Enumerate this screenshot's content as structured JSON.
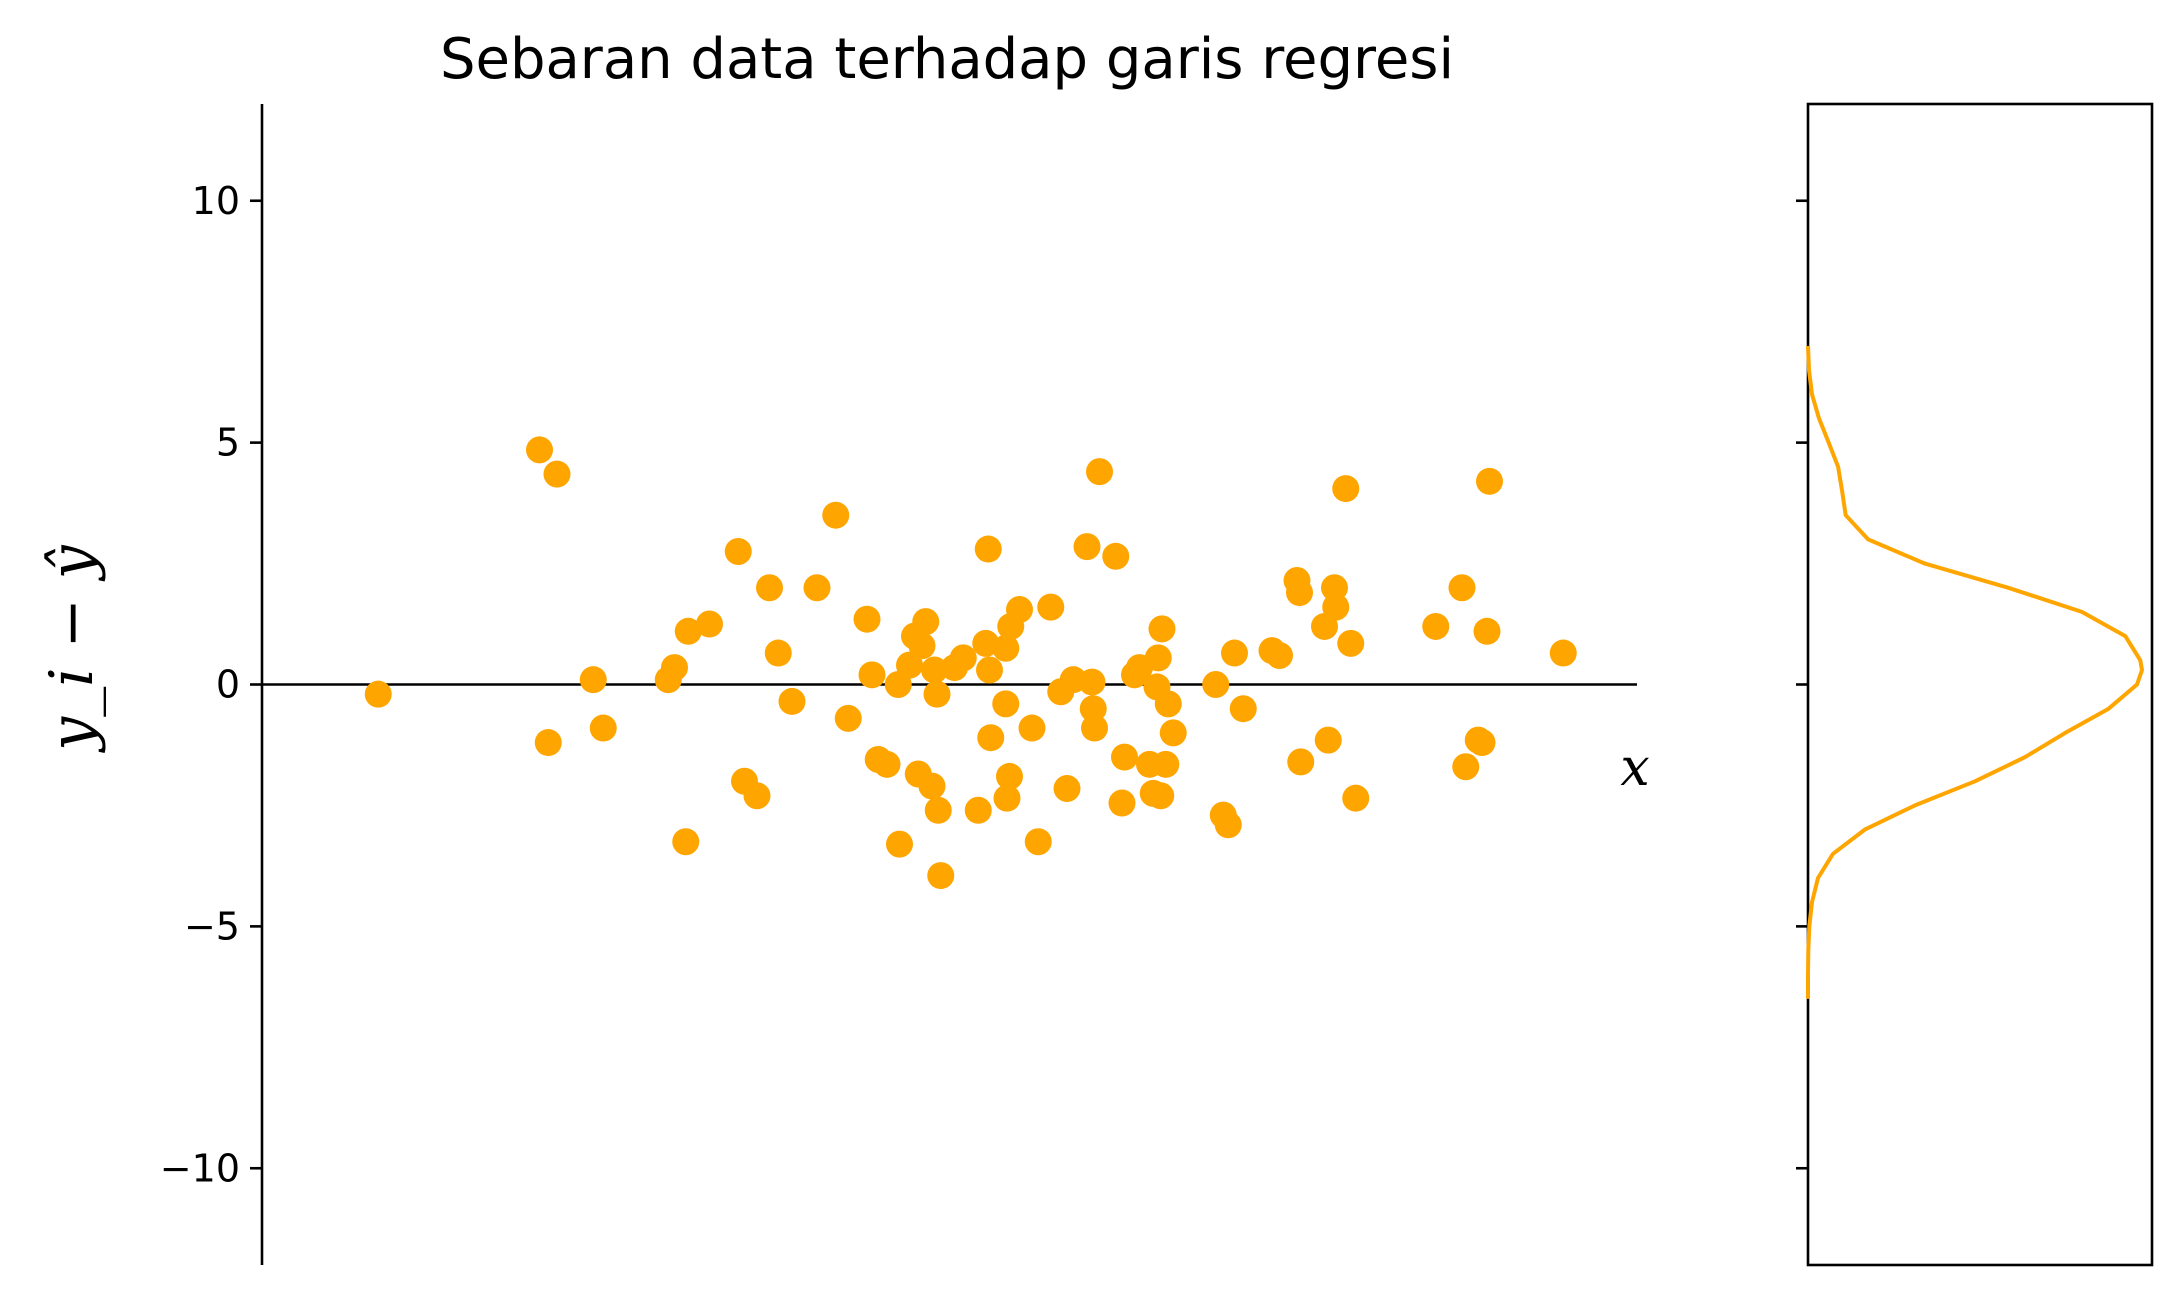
{
  "chart_data": [
    {
      "type": "scatter",
      "title": "Sebaran data terhadap garis regresi",
      "ylabel": "y_i − ŷ",
      "xlabel": "x",
      "ylim": [
        -12,
        12
      ],
      "xlim": [
        0,
        100
      ],
      "yticks": [
        10,
        5,
        0,
        -5,
        -10
      ],
      "ytick_labels": [
        "10",
        "5",
        "0",
        "−5",
        "−10"
      ],
      "grid": false,
      "legend": "none",
      "point_color": "#FFA500",
      "reference_line": {
        "y": 0,
        "x_from": 0,
        "x_to": 100,
        "color": "#000000"
      },
      "series": [
        {
          "values": [
            [
              4.5,
              -0.2
            ],
            [
              17.4,
              4.85
            ],
            [
              18.1,
              -1.2
            ],
            [
              18.8,
              4.35
            ],
            [
              21.7,
              0.1
            ],
            [
              22.5,
              -0.9
            ],
            [
              27.7,
              0.1
            ],
            [
              28.2,
              0.35
            ],
            [
              29.1,
              -3.25
            ],
            [
              29.3,
              1.1
            ],
            [
              31.0,
              1.25
            ],
            [
              33.3,
              2.75
            ],
            [
              33.8,
              -2.0
            ],
            [
              34.8,
              -2.3
            ],
            [
              35.8,
              2.0
            ],
            [
              36.5,
              0.65
            ],
            [
              37.6,
              -0.35
            ],
            [
              39.6,
              2.0
            ],
            [
              41.1,
              3.5
            ],
            [
              42.1,
              -0.7
            ],
            [
              43.6,
              1.35
            ],
            [
              44.0,
              0.2
            ],
            [
              44.5,
              -1.55
            ],
            [
              45.2,
              -1.65
            ],
            [
              46.1,
              0.0
            ],
            [
              46.2,
              -3.3
            ],
            [
              47.0,
              0.4
            ],
            [
              47.4,
              1.0
            ],
            [
              47.7,
              -1.85
            ],
            [
              48.0,
              0.8
            ],
            [
              48.3,
              1.3
            ],
            [
              48.8,
              -2.1
            ],
            [
              49.0,
              0.3
            ],
            [
              49.2,
              -0.2
            ],
            [
              49.3,
              -2.6
            ],
            [
              49.5,
              -3.95
            ],
            [
              50.6,
              0.35
            ],
            [
              51.3,
              0.55
            ],
            [
              52.5,
              -2.6
            ],
            [
              53.1,
              0.85
            ],
            [
              53.3,
              2.8
            ],
            [
              53.4,
              0.3
            ],
            [
              53.5,
              -1.1
            ],
            [
              54.7,
              -0.4
            ],
            [
              54.7,
              0.75
            ],
            [
              54.8,
              -2.35
            ],
            [
              55.0,
              -1.9
            ],
            [
              55.1,
              1.2
            ],
            [
              55.8,
              1.55
            ],
            [
              56.8,
              -0.9
            ],
            [
              57.3,
              -3.25
            ],
            [
              58.3,
              1.6
            ],
            [
              59.1,
              -0.15
            ],
            [
              59.6,
              -2.15
            ],
            [
              60.1,
              0.1
            ],
            [
              61.2,
              2.85
            ],
            [
              61.6,
              0.05
            ],
            [
              61.7,
              -0.5
            ],
            [
              61.8,
              -0.9
            ],
            [
              62.2,
              4.4
            ],
            [
              63.5,
              2.65
            ],
            [
              64.0,
              -2.45
            ],
            [
              64.2,
              -1.5
            ],
            [
              65.0,
              0.2
            ],
            [
              65.4,
              0.35
            ],
            [
              66.2,
              -1.65
            ],
            [
              66.5,
              -2.25
            ],
            [
              66.8,
              -0.05
            ],
            [
              66.9,
              0.55
            ],
            [
              67.1,
              -2.3
            ],
            [
              67.2,
              1.15
            ],
            [
              67.5,
              -1.65
            ],
            [
              67.7,
              -0.4
            ],
            [
              68.1,
              -1.0
            ],
            [
              71.5,
              0.0
            ],
            [
              72.1,
              -2.7
            ],
            [
              72.5,
              -2.9
            ],
            [
              73.0,
              0.65
            ],
            [
              73.7,
              -0.5
            ],
            [
              76.0,
              0.7
            ],
            [
              76.6,
              0.6
            ],
            [
              78.0,
              2.15
            ],
            [
              78.2,
              1.9
            ],
            [
              78.3,
              -1.6
            ],
            [
              80.2,
              1.2
            ],
            [
              80.5,
              -1.15
            ],
            [
              81.0,
              2.0
            ],
            [
              81.1,
              1.6
            ],
            [
              81.9,
              4.05
            ],
            [
              82.3,
              0.85
            ],
            [
              82.7,
              -2.35
            ],
            [
              89.1,
              1.2
            ],
            [
              91.2,
              2.0
            ],
            [
              91.5,
              -1.7
            ],
            [
              92.5,
              -1.15
            ],
            [
              92.8,
              -1.2
            ],
            [
              93.2,
              1.1
            ],
            [
              93.4,
              4.2
            ],
            [
              99.3,
              0.65
            ]
          ]
        }
      ]
    },
    {
      "type": "line",
      "xlabel": "",
      "ylabel": "",
      "ylim": [
        -12,
        12
      ],
      "line_color": "#FFA500",
      "orientation": "vertical",
      "series": [
        {
          "y": [
            7.0,
            6.5,
            6.0,
            5.5,
            5.0,
            4.5,
            4.0,
            3.5,
            3.0,
            2.5,
            2.0,
            1.5,
            1.0,
            0.5,
            0.3,
            0.0,
            -0.5,
            -1.0,
            -1.5,
            -2.0,
            -2.5,
            -3.0,
            -3.5,
            -4.0,
            -4.5,
            -5.0,
            -5.5,
            -6.0,
            -6.5
          ],
          "density": [
            0.0,
            0.003,
            0.012,
            0.033,
            0.062,
            0.09,
            0.102,
            0.113,
            0.18,
            0.35,
            0.6,
            0.82,
            0.95,
            0.995,
            1.0,
            0.985,
            0.9,
            0.77,
            0.65,
            0.5,
            0.32,
            0.17,
            0.075,
            0.03,
            0.012,
            0.004,
            0.001,
            0.0,
            0.0
          ]
        }
      ]
    }
  ]
}
